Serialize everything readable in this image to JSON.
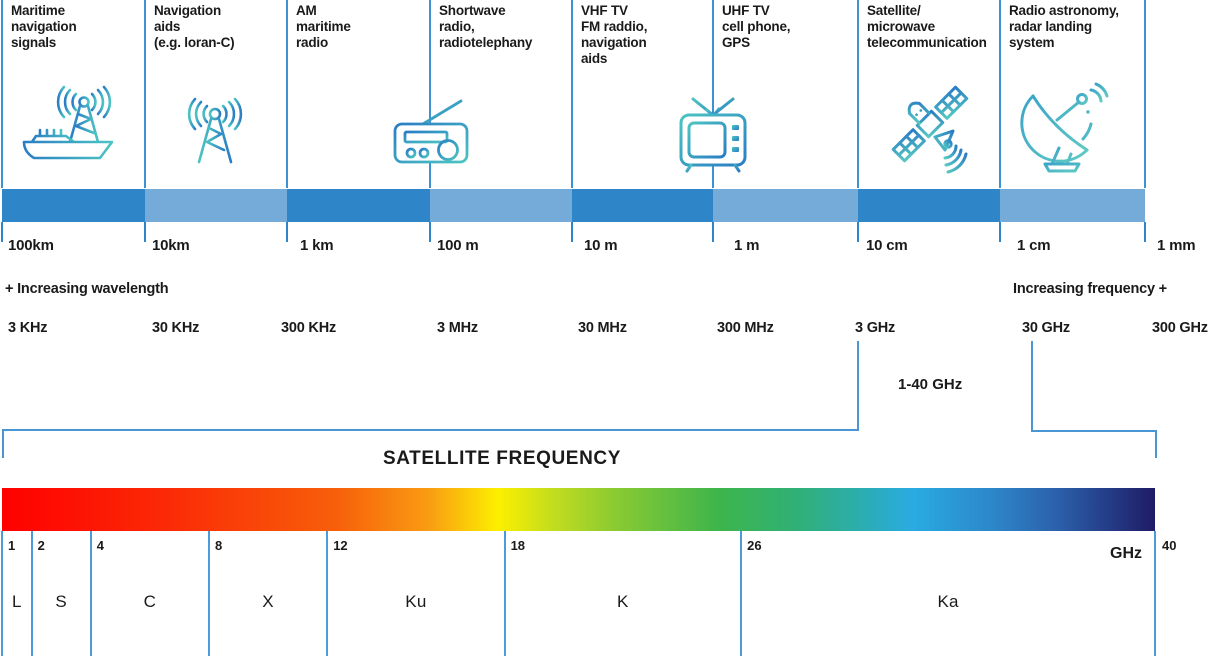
{
  "palette": {
    "divider_blue": "#3e92d1",
    "band_dark_blue": "#2e86c8",
    "band_light_blue": "#74abd9",
    "bracket_blue": "#4a96d4",
    "scale_line_blue": "#4d9bd8",
    "icon_blue": "#2a7dc5",
    "icon_teal": "#4cc4c2",
    "text": "#1a1a1a",
    "gradient_bar_ends": [
      "#ff0000",
      "#fdef00",
      "#3eb54b",
      "#29abe2",
      "#1f1c66"
    ]
  },
  "spectrum": {
    "columns": [
      {
        "label": "Maritime\nnavigation\nsignals",
        "icon": "ship-antenna-icon"
      },
      {
        "label": "Navigation\naids\n(e.g. loran-C)",
        "icon": "antenna-tower-icon"
      },
      {
        "label": "AM\nmaritime\nradio",
        "icon": "radio-icon"
      },
      {
        "label": "Shortwave\nradio,\nradiotelephany",
        "icon": "radio-icon"
      },
      {
        "label": "VHF TV\nFM raddio,\nnavigation\naids",
        "icon": "tv-icon"
      },
      {
        "label": "UHF TV\ncell phone,\nGPS",
        "icon": "tv-icon"
      },
      {
        "label": "Satellite/\nmicrowave\ntelecommunication",
        "icon": "satellite-icon"
      },
      {
        "label": "Radio astronomy,\nradar landing\nsystem",
        "icon": "satellite-dish-icon"
      }
    ],
    "wavelengths": [
      "100km",
      "10km",
      "1 km",
      "100 m",
      "10 m",
      "1 m",
      "10 cm",
      "1 cm",
      "1 mm"
    ],
    "frequencies": [
      "3 KHz",
      "30 KHz",
      "300 KHz",
      "3 MHz",
      "30 MHz",
      "300 MHz",
      "3 GHz",
      "30 GHz",
      "300 GHz"
    ],
    "wavelength_direction": "+ Increasing wavelength",
    "frequency_direction": "Increasing frequency +"
  },
  "bracket_label": "1-40 GHz",
  "satellite_frequency": {
    "title": "SATELLITE FREQUENCY",
    "unit": "GHz",
    "axis_min": 1,
    "axis_max": 40,
    "max_label": "40",
    "bands": [
      {
        "name": "L",
        "from": 1,
        "to": 2,
        "tick_label": "1"
      },
      {
        "name": "S",
        "from": 2,
        "to": 4,
        "tick_label": "2"
      },
      {
        "name": "C",
        "from": 4,
        "to": 8,
        "tick_label": "4"
      },
      {
        "name": "X",
        "from": 8,
        "to": 12,
        "tick_label": "8"
      },
      {
        "name": "Ku",
        "from": 12,
        "to": 18,
        "tick_label": "12"
      },
      {
        "name": "K",
        "from": 18,
        "to": 26,
        "tick_label": "18"
      },
      {
        "name": "Ka",
        "from": 26,
        "to": 40,
        "tick_label": "26"
      }
    ]
  }
}
